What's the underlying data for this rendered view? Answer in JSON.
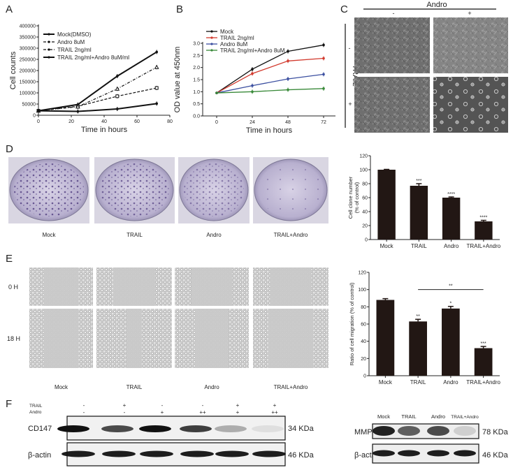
{
  "panels": {
    "a": "A",
    "b": "B",
    "c": "C",
    "d": "D",
    "e": "E",
    "f": "F"
  },
  "chart_data": [
    {
      "type": "line",
      "panel": "A",
      "xlabel": "Time in hours",
      "ylabel": "Cell counts",
      "xlim": [
        0,
        80
      ],
      "ylim": [
        0,
        400000
      ],
      "xticks": [
        0,
        20,
        40,
        60,
        80
      ],
      "yticks": [
        0,
        50000,
        100000,
        150000,
        200000,
        250000,
        300000,
        350000,
        400000
      ],
      "x": [
        0,
        24,
        48,
        72
      ],
      "legend": "top-left",
      "series": [
        {
          "name": "Mock(DMSO)",
          "values": [
            20000,
            48000,
            175000,
            283000
          ],
          "color": "#111111",
          "dash": "solid",
          "marker": "circle"
        },
        {
          "name": "Andro 8uM",
          "values": [
            20000,
            40000,
            85000,
            122000
          ],
          "color": "#111111",
          "dash": "dashed",
          "marker": "square"
        },
        {
          "name": "TRAIL 2ng/ml",
          "values": [
            20000,
            38000,
            118000,
            215000
          ],
          "color": "#111111",
          "dash": "dashdot",
          "marker": "triangle"
        },
        {
          "name": "TRAIL 2ng/ml+Andro 8uM/ml",
          "values": [
            20000,
            17000,
            28000,
            52000
          ],
          "color": "#111111",
          "dash": "solid",
          "marker": "circle"
        }
      ]
    },
    {
      "type": "line",
      "panel": "B",
      "xlabel": "Time in hours",
      "ylabel": "OD value at 450nm",
      "ylim": [
        0,
        3.0
      ],
      "xticks": [
        0,
        24,
        48,
        72
      ],
      "yticks": [
        0.0,
        0.5,
        1.0,
        1.5,
        2.0,
        2.5,
        3.0
      ],
      "x": [
        0,
        24,
        48,
        72
      ],
      "legend": "top-left",
      "series": [
        {
          "name": "Mock",
          "values": [
            0.95,
            1.93,
            2.67,
            2.93
          ],
          "color": "#111111"
        },
        {
          "name": "TRAIL 2ng/ml",
          "values": [
            0.95,
            1.75,
            2.27,
            2.38
          ],
          "color": "#d23a2e"
        },
        {
          "name": "Andro 8uM",
          "values": [
            0.95,
            1.25,
            1.53,
            1.72
          ],
          "color": "#3b4fa0"
        },
        {
          "name": "TRAIL 2ng/ml+Andro 8uM",
          "values": [
            0.95,
            1.0,
            1.08,
            1.13
          ],
          "color": "#3a8a3a"
        }
      ]
    },
    {
      "type": "bar",
      "panel": "D",
      "categories": [
        "Mock",
        "TRAIL",
        "Andro",
        "TRAIL+Andro"
      ],
      "values": [
        100,
        77,
        60,
        26
      ],
      "errors": [
        0.5,
        3,
        1,
        1.5
      ],
      "significance": [
        "",
        "***",
        "****",
        "****"
      ],
      "ylabel": "Cell clone number\n(% of control)",
      "ylim": [
        0,
        120
      ],
      "yticks": [
        0,
        20,
        40,
        60,
        80,
        100,
        120
      ],
      "color": "#221714"
    },
    {
      "type": "bar",
      "panel": "E",
      "categories": [
        "Mock",
        "TRAIL",
        "Andro",
        "TRAIL+Andro"
      ],
      "values": [
        88,
        63,
        78,
        32
      ],
      "errors": [
        1.5,
        2.5,
        2.5,
        2
      ],
      "significance": [
        "",
        "**",
        "*",
        "***"
      ],
      "bracket": {
        "from": "TRAIL",
        "to": "TRAIL+Andro",
        "label": "**"
      },
      "ylabel": "Ratio of cell migration (% of control)",
      "ylim": [
        0,
        120
      ],
      "yticks": [
        0,
        20,
        40,
        60,
        80,
        100,
        120
      ],
      "color": "#221714"
    }
  ],
  "panel_c": {
    "column_header": "Andro",
    "column_signs": [
      "-",
      "+"
    ],
    "row_header": "TRAIL",
    "row_signs": [
      "-",
      "+"
    ]
  },
  "panel_d": {
    "labels": [
      "Mock",
      "TRAIL",
      "Andro",
      "TRAIL+Andro"
    ]
  },
  "panel_e": {
    "row_labels": [
      "0 H",
      "18 H"
    ],
    "labels": [
      "Mock",
      "TRAIL",
      "Andro",
      "TRAIL+Andro"
    ]
  },
  "panel_f": {
    "left": {
      "row_labels": [
        "TRAIL",
        "Andro"
      ],
      "trail": [
        "-",
        "+",
        "-",
        "-",
        "+",
        "+"
      ],
      "andro": [
        "-",
        "-",
        "+",
        "++",
        "+",
        "++"
      ],
      "blots": [
        {
          "name": "CD147",
          "size": "34 KDa"
        },
        {
          "name": "β-actin",
          "size": "46 KDa"
        }
      ]
    },
    "right": {
      "lanes": [
        "Mock",
        "TRAIL",
        "Andro",
        "TRAIL+Andro"
      ],
      "blots": [
        {
          "name": "MMP-9",
          "size": "78 KDa"
        },
        {
          "name": "β-actin",
          "size": "46 KDa"
        }
      ]
    }
  }
}
